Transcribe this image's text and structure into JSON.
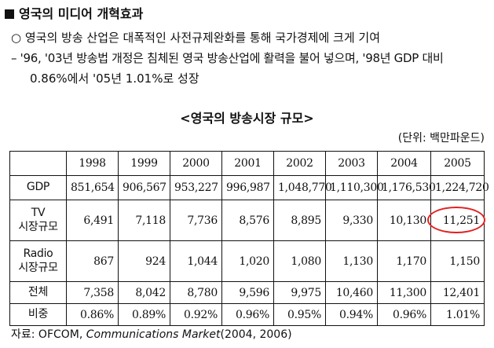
{
  "section": {
    "heading": "영국의 미디어 개혁효과",
    "bullet": "○ 영국의 방송 산업은 대폭적인 사전규제완화를 통해 국가경제에 크게 기여",
    "detail_line1": "– '96, '03년 방송법 개정은 침체된 영국 방송산업에 활력을 불어 넣으며, '98년 GDP 대비",
    "detail_line2": "0.86%에서 '05년 1.01%로 성장"
  },
  "table": {
    "caption": "<영국의 방송시장 규모>",
    "unit": "(단위: 백만파운드)",
    "years": [
      "1998",
      "1999",
      "2000",
      "2001",
      "2002",
      "2003",
      "2004",
      "2005"
    ],
    "rows": [
      {
        "label": "GDP",
        "values": [
          "851,654",
          "906,567",
          "953,227",
          "996,987",
          "1,048,770",
          "1,110,300",
          "1,176,530",
          "1,224,720"
        ]
      },
      {
        "label": "TV\n시장규모",
        "values": [
          "6,491",
          "7,118",
          "7,736",
          "8,576",
          "8,895",
          "9,330",
          "10,130",
          "11,251"
        ]
      },
      {
        "label": "Radio\n시장규모",
        "values": [
          "867",
          "924",
          "1,044",
          "1,020",
          "1,080",
          "1,130",
          "1,170",
          "1,150"
        ]
      },
      {
        "label": "전체",
        "values": [
          "7,358",
          "8,042",
          "8,780",
          "9,596",
          "9,975",
          "10,460",
          "11,300",
          "12,401"
        ]
      },
      {
        "label": "비중",
        "values": [
          "0.86%",
          "0.89%",
          "0.92%",
          "0.96%",
          "0.95%",
          "0.94%",
          "0.96%",
          "1.01%"
        ]
      }
    ],
    "highlight_color": "#e32020"
  },
  "source": {
    "prefix": "자료: OFCOM, ",
    "title": "Communications Market",
    "suffix": "(2004, 2006)"
  }
}
